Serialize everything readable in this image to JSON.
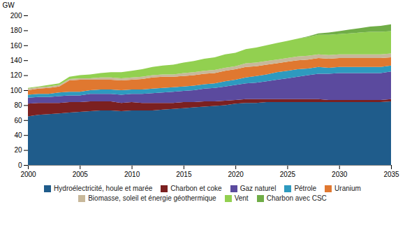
{
  "chart_data": {
    "type": "area",
    "stacked": true,
    "ylabel": "GW",
    "x": [
      2000,
      2001,
      2002,
      2003,
      2004,
      2005,
      2006,
      2007,
      2008,
      2009,
      2010,
      2011,
      2012,
      2013,
      2014,
      2015,
      2016,
      2017,
      2018,
      2019,
      2020,
      2021,
      2022,
      2023,
      2024,
      2025,
      2026,
      2027,
      2028,
      2029,
      2030,
      2031,
      2032,
      2033,
      2034,
      2035
    ],
    "series": [
      {
        "name": "Hydroélectricité, houle et marée",
        "color": "#1F5C8B",
        "values": [
          65,
          67,
          68,
          69,
          70,
          71,
          72,
          73,
          73,
          72,
          73,
          73,
          73,
          74,
          75,
          76,
          77,
          78,
          79,
          80,
          82,
          83,
          83,
          84,
          84,
          84,
          84,
          84,
          84,
          84,
          84,
          84,
          84,
          84,
          84,
          85
        ]
      },
      {
        "name": "Charbon et coke",
        "color": "#7B2020",
        "values": [
          17,
          16,
          15,
          14,
          14,
          13,
          13,
          12,
          12,
          11,
          11,
          10,
          10,
          9,
          8,
          8,
          7,
          7,
          6,
          6,
          5,
          5,
          5,
          4,
          4,
          4,
          4,
          4,
          4,
          3,
          3,
          3,
          3,
          3,
          3,
          3
        ]
      },
      {
        "name": "Gaz naturel",
        "color": "#5B4A9E",
        "values": [
          8,
          8,
          8,
          9,
          9,
          9,
          10,
          10,
          10,
          11,
          11,
          12,
          13,
          14,
          15,
          15,
          16,
          17,
          18,
          19,
          20,
          21,
          22,
          24,
          26,
          28,
          30,
          32,
          34,
          35,
          36,
          36,
          36,
          36,
          36,
          37
        ]
      },
      {
        "name": "Pétrole",
        "color": "#2E9ABF",
        "values": [
          4,
          4,
          4,
          5,
          5,
          5,
          5,
          6,
          6,
          6,
          6,
          6,
          6,
          6,
          6,
          6,
          6,
          6,
          6,
          7,
          7,
          8,
          9,
          9,
          10,
          10,
          10,
          9,
          9,
          8,
          8,
          8,
          8,
          8,
          8,
          8
        ]
      },
      {
        "name": "Uranium",
        "color": "#E07830",
        "values": [
          6,
          7,
          8,
          8,
          15,
          16,
          14,
          13,
          13,
          13,
          13,
          14,
          15,
          15,
          14,
          14,
          14,
          14,
          14,
          14,
          14,
          14,
          13,
          13,
          12,
          12,
          12,
          12,
          12,
          12,
          12,
          12,
          12,
          12,
          12,
          11
        ]
      },
      {
        "name": "Biomasse, soleil et énergie géothermique",
        "color": "#C8B89A",
        "values": [
          2,
          2,
          2,
          2,
          2,
          2,
          2,
          3,
          3,
          3,
          3,
          3,
          3,
          3,
          3,
          4,
          4,
          4,
          4,
          4,
          4,
          5,
          5,
          5,
          5,
          5,
          5,
          5,
          5,
          5,
          5,
          5,
          5,
          5,
          5,
          5
        ]
      },
      {
        "name": "Vent",
        "color": "#92D050",
        "values": [
          1,
          1,
          2,
          2,
          3,
          4,
          5,
          6,
          7,
          8,
          9,
          10,
          11,
          12,
          13,
          14,
          15,
          16,
          17,
          18,
          18,
          19,
          20,
          21,
          22,
          23,
          24,
          25,
          26,
          27,
          27,
          28,
          29,
          30,
          30,
          30
        ]
      },
      {
        "name": "Charbon avec CSC",
        "color": "#70AD47",
        "values": [
          0,
          0,
          0,
          0,
          0,
          0,
          0,
          0,
          0,
          0,
          0,
          0,
          0,
          0,
          0,
          0,
          0,
          0,
          0,
          0,
          0,
          0,
          0,
          0,
          0,
          0,
          0,
          1,
          2,
          3,
          4,
          5,
          6,
          7,
          8,
          9
        ]
      }
    ],
    "xlim": [
      2000,
      2035
    ],
    "xticks": [
      2000,
      2005,
      2010,
      2015,
      2020,
      2025,
      2030,
      2035
    ],
    "ylim": [
      0,
      200
    ],
    "yticks": [
      0,
      20,
      40,
      60,
      80,
      100,
      120,
      140,
      160,
      180,
      200
    ],
    "grid": false,
    "legend": "bottom"
  }
}
